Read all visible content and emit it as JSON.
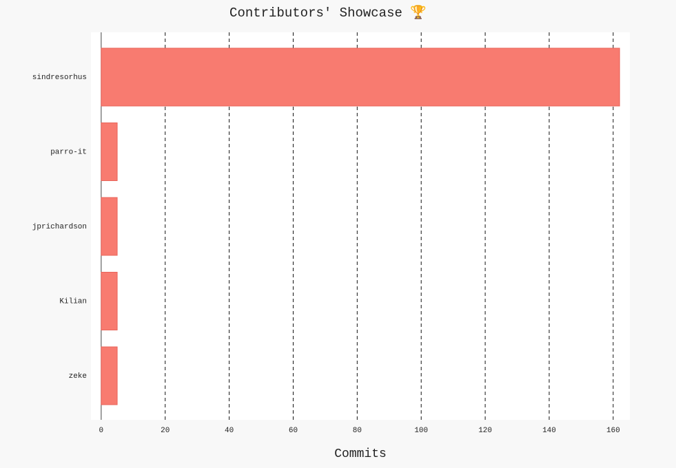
{
  "chart_data": {
    "type": "bar",
    "orientation": "horizontal",
    "title": "Contributors' Showcase 🏆",
    "x_label": "Commits",
    "categories": [
      "sindresorhus",
      "parro-it",
      "jprichardson",
      "Kilian",
      "zeke"
    ],
    "values": [
      162,
      5,
      5,
      5,
      5
    ],
    "color": "#f87b70",
    "xlim": [
      -3.2,
      165.2
    ],
    "xticks": [
      0,
      20,
      40,
      60,
      80,
      100,
      120,
      140,
      160
    ],
    "grid": true
  }
}
